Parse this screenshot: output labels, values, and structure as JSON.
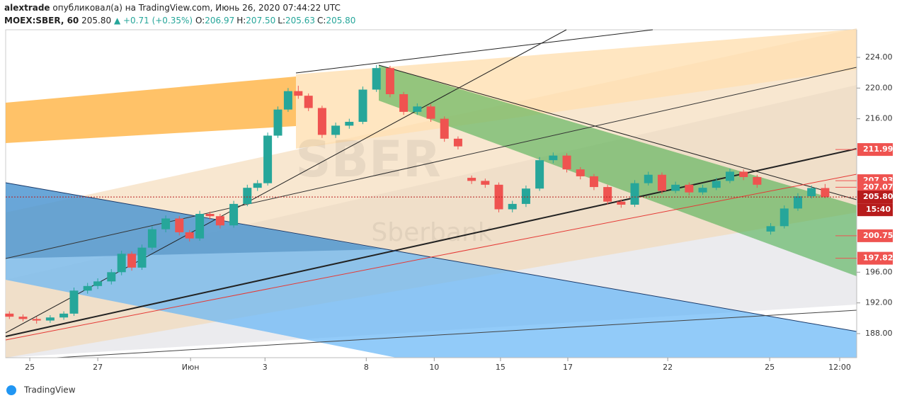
{
  "header": {
    "user": "alextrade",
    "published": "опубликовал(а) на TradingView.com, Июнь 26, 2020 07:44:22 UTC",
    "symbol": "MOEX:SBER, 60",
    "last": "205.80",
    "change": "▲ +0.71 (+0.35%)",
    "ohlc": [
      {
        "label": "O:",
        "value": "206.97"
      },
      {
        "label": "H:",
        "value": "207.50"
      },
      {
        "label": "L:",
        "value": "205.63"
      },
      {
        "label": "C:",
        "value": "205.80"
      }
    ]
  },
  "footer": {
    "brand": "TradingView"
  },
  "chart_data": {
    "type": "candlestick",
    "watermark": "SBER",
    "watermark_sub": "Sberbank",
    "up_color": "#26a69a",
    "down_color": "#ef5350",
    "xlim": [
      -0.71,
      24.33
    ],
    "ylim": [
      184.86,
      227.6
    ],
    "xticks": [
      {
        "value": 0,
        "label": "25"
      },
      {
        "value": 2,
        "label": "27"
      },
      {
        "value": 4.73,
        "label": "Июн"
      },
      {
        "value": 6.92,
        "label": "3"
      },
      {
        "value": 9.9,
        "label": "8"
      },
      {
        "value": 11.9,
        "label": "10"
      },
      {
        "value": 13.85,
        "label": "15"
      },
      {
        "value": 15.83,
        "label": "17"
      },
      {
        "value": 18.77,
        "label": "22"
      },
      {
        "value": 21.77,
        "label": "25"
      },
      {
        "value": 23.83,
        "label": "12:00"
      }
    ],
    "yticks": [
      {
        "value": 188,
        "label": "188.00"
      },
      {
        "value": 192,
        "label": "192.00"
      },
      {
        "value": 196,
        "label": "196.00"
      },
      {
        "value": 216,
        "label": "216.00"
      },
      {
        "value": 220,
        "label": "220.00"
      },
      {
        "value": 224,
        "label": "224.00"
      }
    ],
    "x": [
      -0.6,
      -0.2,
      0.2,
      0.6,
      1.0,
      1.3,
      1.7,
      2.0,
      2.4,
      2.7,
      3.0,
      3.3,
      3.6,
      4.0,
      4.4,
      4.7,
      5.0,
      5.3,
      5.6,
      6.0,
      6.4,
      6.7,
      7.0,
      7.3,
      7.6,
      7.9,
      8.2,
      8.6,
      9.0,
      9.4,
      9.8,
      10.2,
      10.6,
      11.0,
      11.4,
      11.8,
      12.2,
      12.6,
      13.0,
      13.4,
      13.8,
      14.2,
      14.6,
      15.0,
      15.4,
      15.8,
      16.2,
      16.6,
      17.0,
      17.4,
      17.8,
      18.2,
      18.6,
      19.0,
      19.4,
      19.8,
      20.2,
      20.6,
      21.0,
      21.4,
      21.8,
      22.2,
      22.6,
      23.0,
      23.4
    ],
    "open": [
      190.6,
      190.2,
      189.9,
      189.7,
      190.1,
      190.6,
      193.6,
      194.2,
      194.8,
      196.0,
      198.4,
      196.6,
      199.2,
      201.6,
      203.0,
      201.2,
      200.4,
      203.6,
      203.3,
      202.1,
      204.9,
      207.0,
      207.6,
      213.8,
      217.2,
      219.6,
      219.0,
      217.4,
      213.9,
      215.1,
      215.6,
      219.8,
      222.6,
      219.2,
      216.9,
      217.6,
      216.0,
      213.4,
      208.3,
      207.9,
      207.4,
      204.2,
      204.9,
      206.9,
      210.6,
      211.2,
      209.4,
      208.5,
      207.1,
      205.2,
      204.8,
      207.6,
      208.7,
      206.6,
      207.4,
      206.4,
      207.0,
      207.9,
      209.1,
      208.4,
      201.3,
      202.0,
      204.3,
      205.9,
      206.97
    ],
    "high": [
      190.9,
      190.5,
      190.2,
      190.4,
      190.9,
      194.0,
      194.6,
      195.2,
      196.4,
      198.8,
      198.7,
      199.6,
      202.0,
      203.4,
      203.3,
      201.5,
      204.0,
      203.9,
      203.6,
      205.3,
      207.4,
      208.0,
      214.2,
      217.6,
      220.0,
      220.3,
      219.3,
      217.7,
      215.5,
      216.0,
      220.2,
      223.0,
      222.9,
      219.5,
      218.0,
      217.9,
      216.3,
      213.7,
      208.6,
      208.2,
      207.7,
      205.3,
      207.3,
      211.0,
      211.6,
      211.5,
      209.7,
      208.8,
      207.4,
      205.5,
      208.0,
      209.1,
      209.0,
      207.8,
      207.7,
      207.4,
      208.3,
      209.5,
      209.4,
      208.7,
      202.4,
      204.7,
      206.3,
      207.3,
      207.5
    ],
    "low": [
      189.9,
      189.6,
      189.3,
      189.4,
      189.8,
      190.3,
      193.2,
      193.8,
      194.4,
      195.6,
      196.2,
      196.3,
      198.9,
      201.2,
      200.8,
      200.0,
      200.1,
      202.9,
      201.7,
      201.8,
      204.6,
      206.6,
      207.3,
      213.5,
      216.9,
      218.6,
      217.0,
      213.5,
      213.5,
      214.7,
      215.3,
      219.5,
      218.8,
      216.5,
      216.5,
      215.6,
      213.0,
      212.0,
      207.5,
      207.0,
      203.8,
      203.8,
      204.5,
      206.6,
      210.2,
      209.0,
      208.1,
      206.7,
      204.8,
      204.4,
      204.5,
      207.3,
      206.2,
      206.3,
      206.0,
      206.1,
      206.7,
      207.6,
      208.0,
      207.0,
      200.9,
      201.7,
      204.0,
      205.6,
      205.63
    ],
    "close": [
      190.2,
      189.9,
      189.7,
      190.1,
      190.6,
      193.6,
      194.2,
      194.8,
      196.0,
      198.4,
      196.6,
      199.2,
      201.6,
      203.0,
      201.2,
      200.4,
      203.6,
      203.3,
      202.1,
      204.9,
      207.0,
      207.6,
      213.8,
      217.2,
      219.6,
      219.0,
      217.4,
      213.9,
      215.1,
      215.6,
      219.8,
      222.6,
      219.2,
      216.9,
      217.6,
      216.0,
      213.4,
      212.4,
      207.9,
      207.4,
      204.2,
      204.9,
      206.9,
      210.6,
      211.2,
      209.4,
      208.5,
      207.1,
      205.2,
      204.8,
      207.6,
      208.7,
      206.6,
      207.4,
      206.4,
      207.0,
      207.9,
      209.1,
      208.4,
      207.4,
      202.0,
      204.3,
      205.9,
      206.97,
      205.8
    ],
    "price_labels": [
      {
        "value": 211.99,
        "label": "211.99",
        "color": "#ef5350"
      },
      {
        "value": 207.93,
        "label": "207.93",
        "color": "#ef5350"
      },
      {
        "value": 207.07,
        "label": "207.07",
        "color": "#ef5350"
      },
      {
        "value": 205.8,
        "label": "205.80",
        "color": "#b71c1c"
      },
      {
        "value": 200.75,
        "label": "200.75",
        "color": "#ef5350"
      },
      {
        "value": 197.82,
        "label": "197.82",
        "color": "#ef5350"
      }
    ],
    "countdown": "15:40"
  }
}
